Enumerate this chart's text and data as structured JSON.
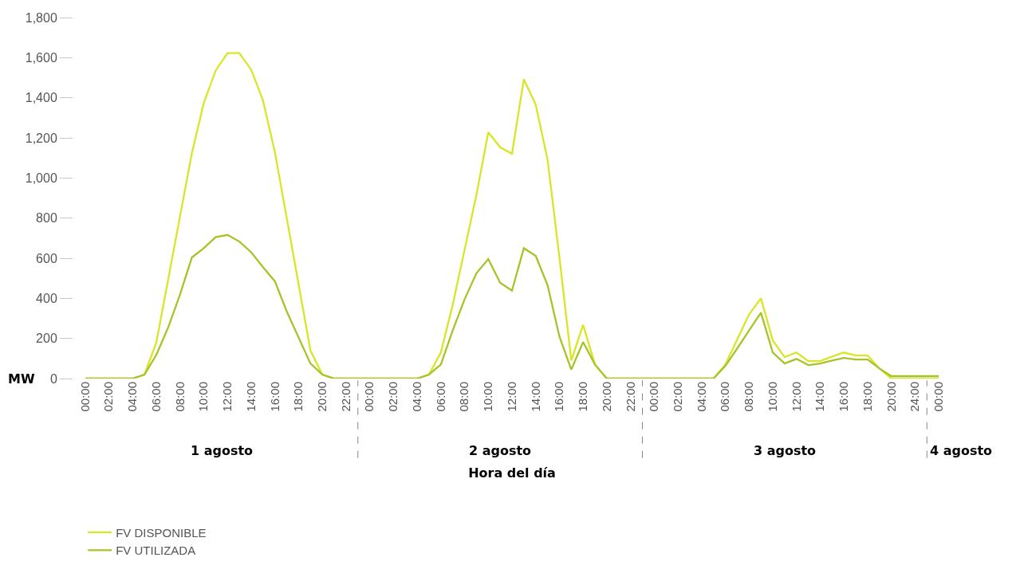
{
  "chart_data": {
    "type": "line",
    "xlabel": "Hora del día",
    "ylabel": "MW",
    "categories": [
      "00:00",
      null,
      "02:00",
      null,
      "04:00",
      null,
      "06:00",
      null,
      "08:00",
      null,
      "10:00",
      null,
      "12:00",
      null,
      "14:00",
      null,
      "16:00",
      null,
      "18:00",
      null,
      "20:00",
      null,
      "22:00",
      null,
      "00:00",
      null,
      "02:00",
      null,
      "04:00",
      null,
      "06:00",
      null,
      "08:00",
      null,
      "10:00",
      null,
      "12:00",
      null,
      "14:00",
      null,
      "16:00",
      null,
      "18:00",
      null,
      "20:00",
      null,
      "22:00",
      null,
      "00:00",
      null,
      "02:00",
      null,
      "04:00",
      null,
      "06:00",
      null,
      "08:00",
      null,
      "10:00",
      null,
      "12:00",
      null,
      "14:00",
      null,
      "16:00",
      null,
      "18:00",
      null,
      "20:00",
      null,
      "24:00",
      null,
      "00:00"
    ],
    "series": [
      {
        "name": "FV DISPONIBLE",
        "color": "#d9e526",
        "values": [
          0,
          0,
          0,
          0,
          0,
          20,
          180,
          495,
          810,
          1125,
          1374,
          1535,
          1623,
          1623,
          1540,
          1386,
          1129,
          800,
          470,
          140,
          20,
          0,
          0,
          0,
          0,
          0,
          0,
          0,
          0,
          20,
          130,
          368,
          642,
          916,
          1228,
          1153,
          1121,
          1492,
          1366,
          1092,
          606,
          90,
          268,
          70,
          0,
          0,
          0,
          0,
          0,
          0,
          0,
          0,
          0,
          0,
          70,
          195,
          320,
          400,
          190,
          107,
          130,
          87,
          87,
          110,
          130,
          115,
          115,
          50,
          0,
          0,
          0,
          0,
          0
        ]
      },
      {
        "name": "FV UTILIZADA",
        "color": "#a6c42a",
        "values": [
          0,
          0,
          0,
          0,
          0,
          20,
          118,
          255,
          420,
          604,
          650,
          705,
          716,
          683,
          630,
          555,
          485,
          335,
          205,
          75,
          20,
          0,
          0,
          0,
          0,
          0,
          0,
          0,
          0,
          20,
          70,
          240,
          395,
          525,
          596,
          478,
          438,
          650,
          612,
          466,
          210,
          45,
          182,
          70,
          0,
          0,
          0,
          0,
          0,
          0,
          0,
          0,
          0,
          0,
          63,
          150,
          240,
          328,
          130,
          75,
          98,
          67,
          75,
          90,
          103,
          95,
          95,
          50,
          12,
          12,
          12,
          12,
          12
        ]
      }
    ],
    "annotations": [
      "1 agosto",
      "2 agosto",
      "3 agosto",
      "4 agosto"
    ],
    "ylim": [
      0,
      1800
    ],
    "yticks": [
      0,
      200,
      400,
      600,
      800,
      {
        "value": 1000,
        "label": "1,000"
      },
      {
        "value": 1200,
        "label": "1,200"
      },
      {
        "value": 1400,
        "label": "1,400"
      },
      {
        "value": 1600,
        "label": "1,600"
      },
      {
        "value": 1800,
        "label": "1,800"
      }
    ],
    "grid": false,
    "legend": "bottom left",
    "marker": "none",
    "line_style": "solid"
  }
}
